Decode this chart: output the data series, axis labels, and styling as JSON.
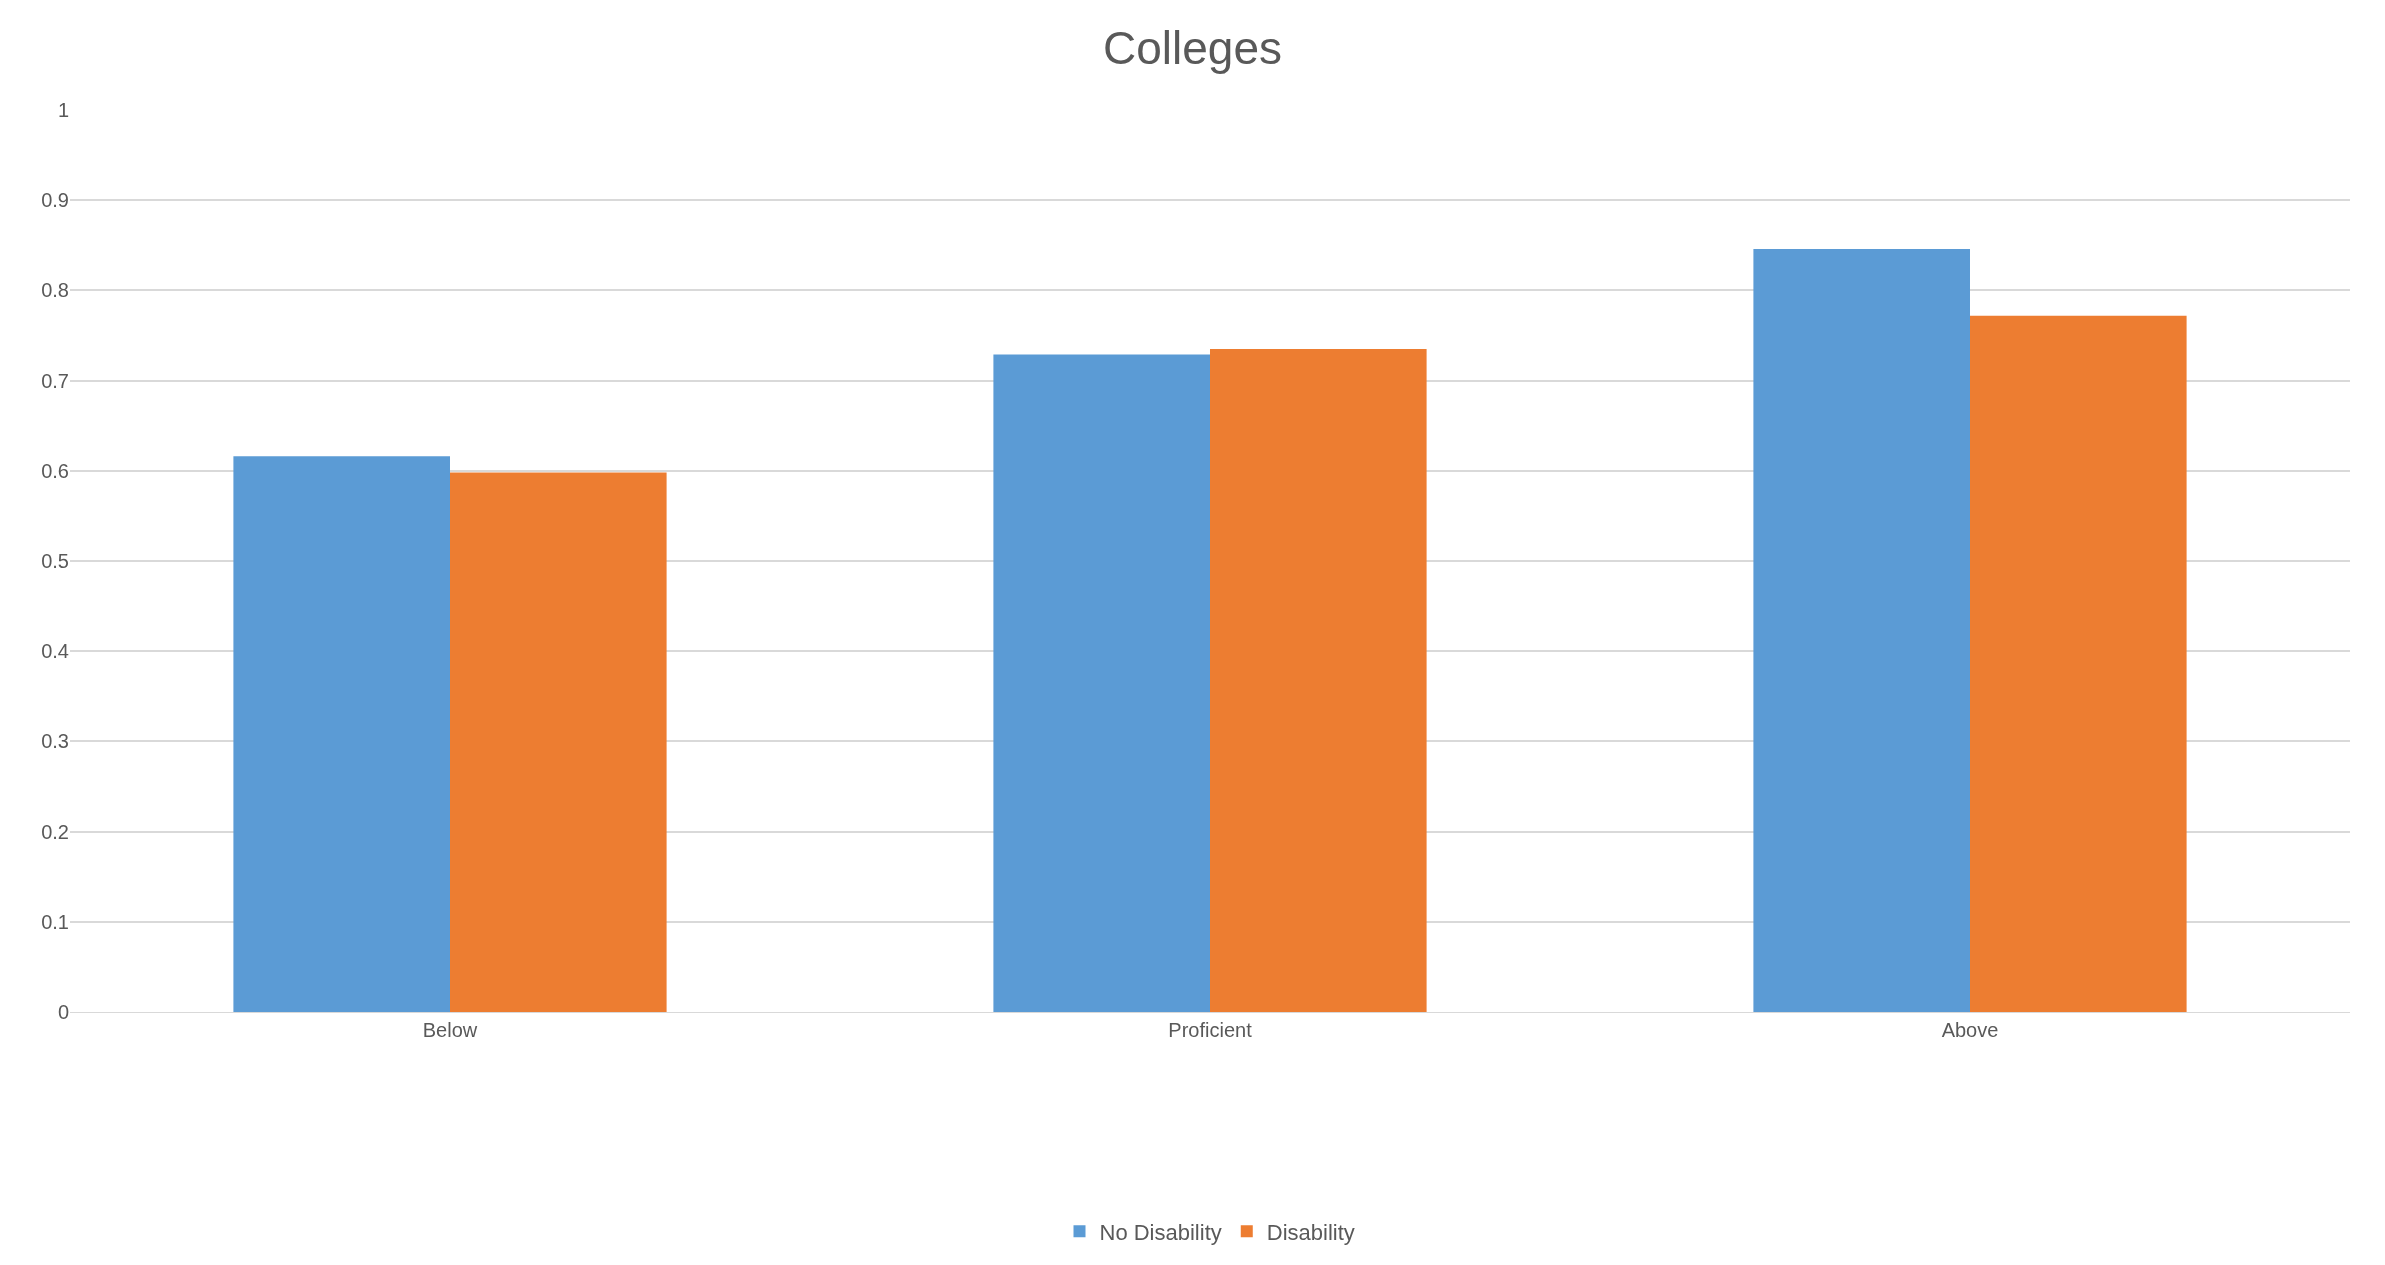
{
  "chart_data": {
    "type": "bar",
    "title": "Colleges",
    "categories": [
      "Below",
      "Proficient",
      "Above"
    ],
    "series": [
      {
        "name": "No Disability",
        "color": "#5b9bd5",
        "values": [
          0.616,
          0.729,
          0.846
        ]
      },
      {
        "name": "Disability",
        "color": "#ed7d31",
        "values": [
          0.598,
          0.735,
          0.772
        ]
      }
    ],
    "ylim": [
      0,
      1
    ],
    "yticks": [
      0,
      0.1,
      0.2,
      0.3,
      0.4,
      0.5,
      0.6,
      0.7,
      0.8,
      0.9,
      1
    ],
    "grid": "y",
    "legend": "bottom"
  }
}
